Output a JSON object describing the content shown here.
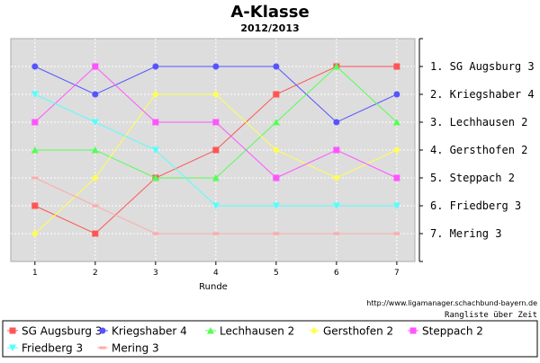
{
  "chart_data": {
    "type": "line",
    "title": "A-Klasse",
    "subtitle": "2012/2013",
    "xlabel": "Runde",
    "x": [
      1,
      2,
      3,
      4,
      5,
      6,
      7
    ],
    "xlim": [
      0.6,
      7.3
    ],
    "y_axis": {
      "inverted": true,
      "range": [
        0,
        8
      ]
    },
    "rank_labels": [
      "1. SG Augsburg 3",
      "2. Kriegshaber 4",
      "3. Lechhausen 2",
      "4. Gersthofen 2",
      "5. Steppach 2",
      "6. Friedberg 3",
      "7. Mering 3"
    ],
    "source": "http://www.ligamanager.schachbund-bayern.de",
    "footer": "Rangliste über Zeit",
    "legend_position": "bottom",
    "series": [
      {
        "name": "SG Augsburg 3",
        "color": "#ff5555",
        "marker": "square",
        "values": [
          6,
          7,
          5,
          4,
          2,
          1,
          1
        ]
      },
      {
        "name": "Kriegshaber 4",
        "color": "#5555ff",
        "marker": "circle",
        "values": [
          1,
          2,
          1,
          1,
          1,
          3,
          2
        ]
      },
      {
        "name": "Lechhausen 2",
        "color": "#55ff55",
        "marker": "triangle-up",
        "values": [
          4,
          4,
          5,
          5,
          3,
          1,
          3
        ]
      },
      {
        "name": "Gersthofen 2",
        "color": "#ffff55",
        "marker": "diamond",
        "values": [
          7,
          5,
          2,
          2,
          4,
          5,
          4
        ]
      },
      {
        "name": "Steppach 2",
        "color": "#ff55ff",
        "marker": "square",
        "values": [
          3,
          1,
          3,
          3,
          5,
          4,
          5
        ]
      },
      {
        "name": "Friedberg 3",
        "color": "#55ffff",
        "marker": "triangle-down",
        "values": [
          2,
          3,
          4,
          6,
          6,
          6,
          6
        ]
      },
      {
        "name": "Mering 3",
        "color": "#ffaaaa",
        "marker": "dash",
        "values": [
          5,
          6,
          7,
          7,
          7,
          7,
          7
        ]
      }
    ]
  }
}
